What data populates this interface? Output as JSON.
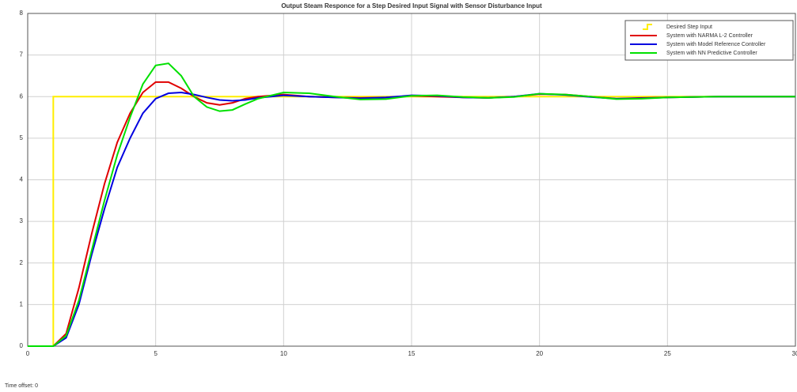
{
  "chart_data": {
    "type": "line",
    "title": "Output Steam Responce for a Step Desired Input Signal with Sensor Disturbance Input",
    "annotation": "Time offset:  0",
    "xlim": [
      0,
      30
    ],
    "xticks": [
      0,
      5,
      10,
      15,
      20,
      25,
      30
    ],
    "ylim": [
      0,
      8
    ],
    "yticks": [
      0,
      1,
      2,
      3,
      4,
      5,
      6,
      7,
      8
    ],
    "grid": true,
    "legend": "upper right",
    "series": [
      {
        "name": "Desired Step Input",
        "color": "#ffee00",
        "x": [
          0,
          1,
          1,
          30
        ],
        "values": [
          0,
          0,
          6,
          6
        ]
      },
      {
        "name": "System with NARMA L-2 Controller",
        "color": "#e00000",
        "x": [
          0,
          1,
          1.5,
          2,
          2.5,
          3,
          3.5,
          4,
          4.5,
          5,
          5.5,
          6,
          6.5,
          7,
          7.5,
          8,
          8.5,
          9,
          10,
          11,
          12,
          13,
          14,
          15,
          16,
          17,
          18,
          19,
          20,
          21,
          22,
          23,
          24,
          25,
          26,
          27,
          28,
          29,
          30
        ],
        "values": [
          0,
          0,
          0.3,
          1.4,
          2.7,
          3.9,
          4.9,
          5.6,
          6.1,
          6.35,
          6.35,
          6.2,
          6.0,
          5.85,
          5.8,
          5.85,
          5.95,
          6.0,
          6.05,
          6.0,
          5.98,
          5.97,
          5.98,
          6.02,
          6.0,
          5.98,
          5.97,
          6.0,
          6.06,
          6.05,
          6.0,
          5.95,
          5.97,
          5.98,
          5.99,
          6.0,
          6.0,
          6.0,
          6.0
        ]
      },
      {
        "name": "System with Model Reference Controller",
        "color": "#0000e0",
        "x": [
          0,
          1,
          1.5,
          2,
          2.5,
          3,
          3.5,
          4,
          4.5,
          5,
          5.5,
          6,
          6.5,
          7,
          7.5,
          8,
          8.5,
          9,
          10,
          11,
          12,
          13,
          14,
          15,
          16,
          17,
          18,
          19,
          20,
          21,
          22,
          23,
          24,
          25,
          26,
          27,
          28,
          29,
          30
        ],
        "values": [
          0,
          0,
          0.2,
          1.0,
          2.2,
          3.3,
          4.3,
          5.0,
          5.6,
          5.95,
          6.08,
          6.1,
          6.05,
          5.98,
          5.92,
          5.9,
          5.92,
          5.97,
          6.03,
          6.0,
          5.98,
          5.96,
          5.98,
          6.03,
          6.02,
          5.98,
          5.97,
          6.0,
          6.07,
          6.04,
          5.99,
          5.95,
          5.96,
          5.98,
          5.99,
          6.0,
          6.0,
          6.0,
          6.0
        ]
      },
      {
        "name": "System with NN Predictive Controller",
        "color": "#00e000",
        "x": [
          0,
          1,
          1.5,
          2,
          2.5,
          3,
          3.5,
          4,
          4.5,
          5,
          5.5,
          6,
          6.5,
          7,
          7.5,
          8,
          8.5,
          9,
          10,
          11,
          12,
          13,
          14,
          15,
          16,
          17,
          18,
          19,
          20,
          21,
          22,
          23,
          24,
          25,
          26,
          27,
          28,
          29,
          30
        ],
        "values": [
          0,
          0,
          0.25,
          1.1,
          2.3,
          3.5,
          4.6,
          5.5,
          6.3,
          6.75,
          6.8,
          6.5,
          6.0,
          5.75,
          5.65,
          5.68,
          5.82,
          5.95,
          6.1,
          6.08,
          6.0,
          5.93,
          5.94,
          6.02,
          6.03,
          5.99,
          5.97,
          5.99,
          6.07,
          6.05,
          6.0,
          5.94,
          5.95,
          5.98,
          5.99,
          6.0,
          6.0,
          6.0,
          6.0
        ]
      }
    ]
  }
}
